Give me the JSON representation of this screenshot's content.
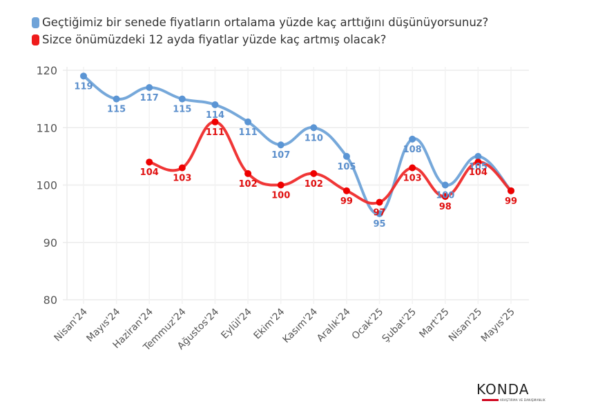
{
  "chart_data": {
    "type": "line",
    "title": "",
    "xlabel": "",
    "ylabel": "",
    "ylim": [
      80,
      120
    ],
    "yticks": [
      80,
      90,
      100,
      110,
      120
    ],
    "grid": true,
    "legend_position": "top-left",
    "categories": [
      "Nisan'24",
      "Mayıs'24",
      "Haziran'24",
      "Temmuz'24",
      "Ağustos'24",
      "Eylül'24",
      "Ekim'24",
      "Kasım'24",
      "Aralık'24",
      "Ocak'25",
      "Şubat'25",
      "Mart'25",
      "Nisan'25",
      "Mayıs'25"
    ],
    "series": [
      {
        "name": "Geçtiğimiz bir senede fiyatların ortalama yüzde kaç arttığını düşünüyorsunuz?",
        "color": "#6fa3d8",
        "values": [
          119,
          115,
          117,
          115,
          114,
          111,
          107,
          110,
          105,
          95,
          108,
          100,
          105,
          99
        ],
        "labels_shown": [
          true,
          true,
          true,
          true,
          true,
          true,
          true,
          true,
          true,
          true,
          true,
          true,
          true,
          false
        ]
      },
      {
        "name": "Sizce önümüzdeki 12 ayda fiyatlar yüzde kaç artmış olacak?",
        "color": "#ef2b2b",
        "values": [
          null,
          null,
          104,
          103,
          111,
          102,
          100,
          102,
          99,
          97,
          103,
          98,
          104,
          99
        ],
        "labels_shown": [
          false,
          false,
          true,
          true,
          true,
          true,
          true,
          true,
          true,
          true,
          true,
          true,
          true,
          true
        ]
      }
    ]
  },
  "legend": {
    "items": [
      {
        "label": "Geçtiğimiz bir senede fiyatların ortalama yüzde kaç arttığını düşünüyorsunuz?",
        "color": "#6fa3d8"
      },
      {
        "label": "Sizce önümüzdeki 12 ayda fiyatlar yüzde kaç artmış olacak?",
        "color": "#ef1c1c"
      }
    ]
  },
  "logo": {
    "text": "KONDA",
    "subtitle": "ARAŞTIRMA VE DANIŞMANLIK"
  }
}
